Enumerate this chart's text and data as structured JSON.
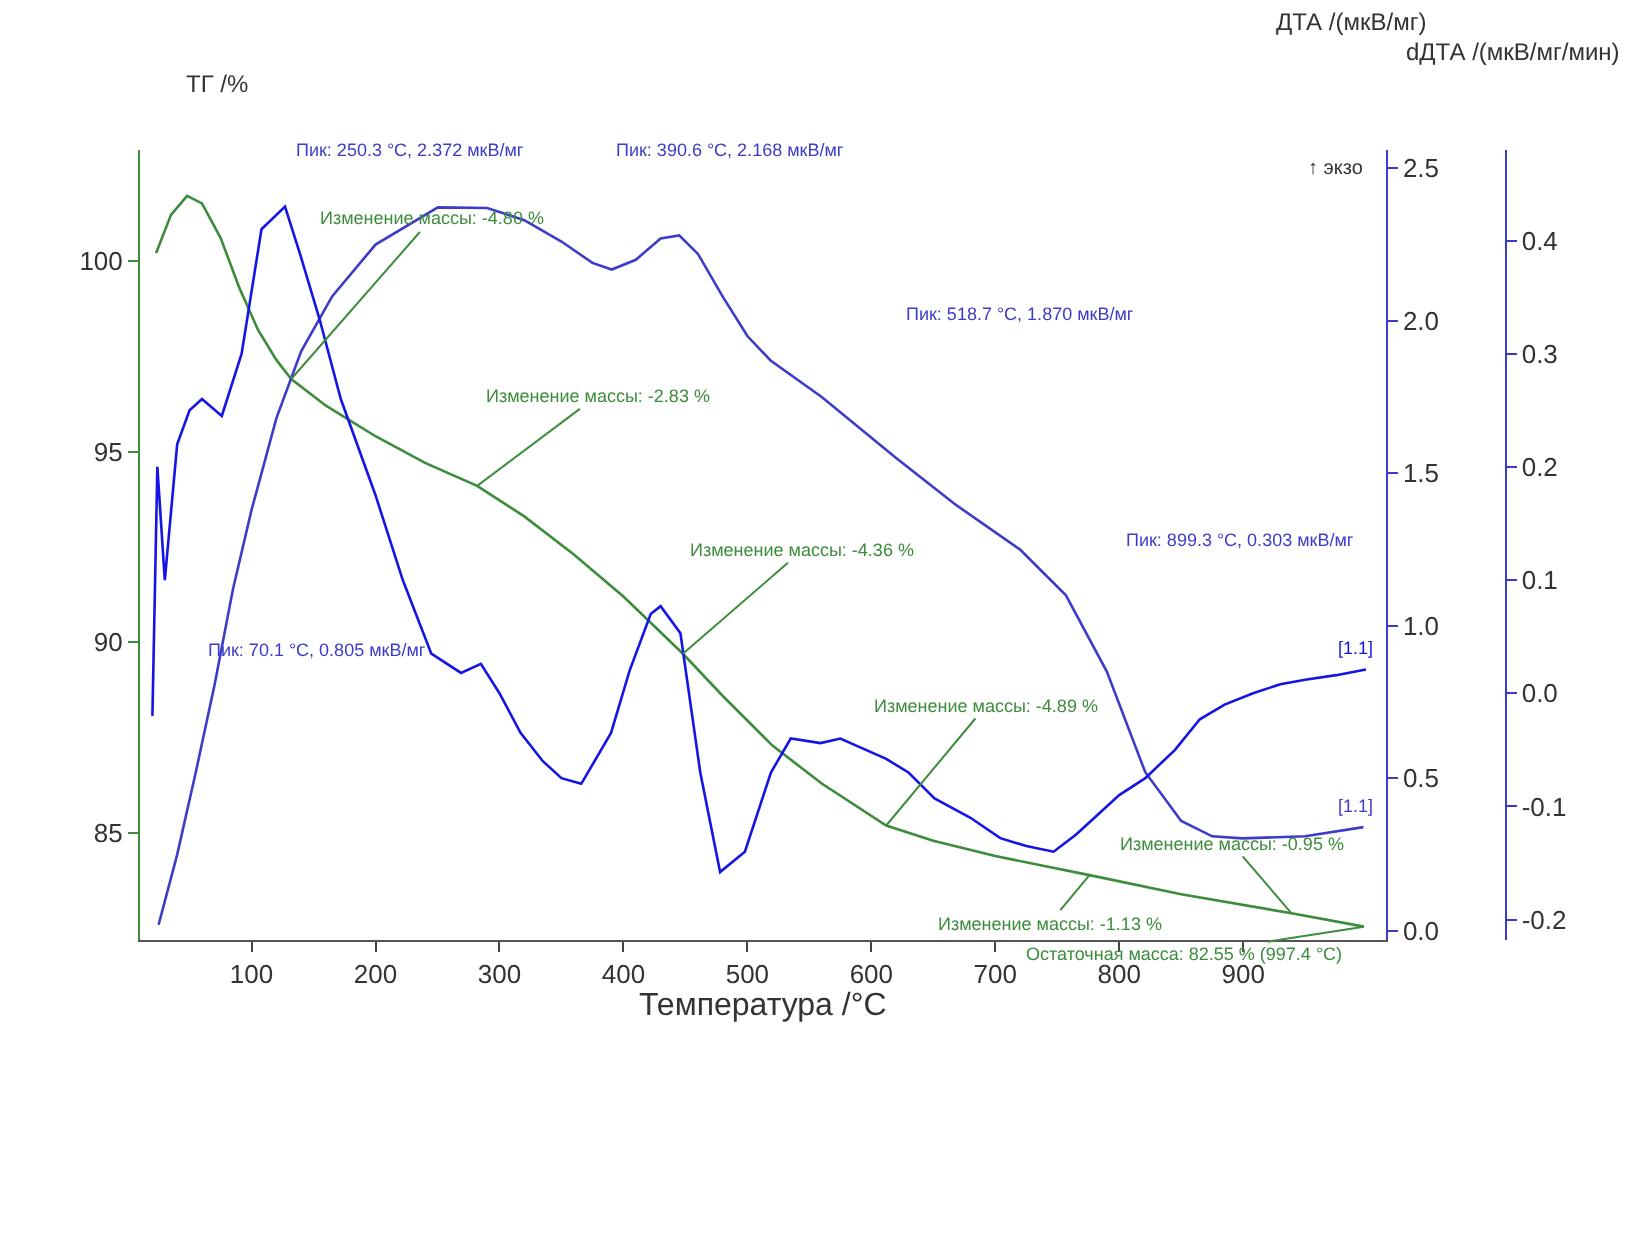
{
  "chart_data": {
    "type": "line",
    "xlabel": "Температура /°C",
    "ylabel": "ТГ /%",
    "y2label": "ДТА /(мкВ/мг)",
    "y3label": "dДТА /(мкВ/мг/мин)",
    "xlim": [
      10,
      1015
    ],
    "xticks": [
      100,
      200,
      300,
      400,
      500,
      600,
      700,
      800,
      900
    ],
    "ylim": [
      82.2,
      102.9
    ],
    "yticks": [
      85,
      90,
      95,
      100
    ],
    "y2lim": [
      -0.03,
      2.56
    ],
    "y2ticks": [
      {
        "value": 0,
        "label": "0.0"
      },
      {
        "value": 0.5,
        "label": "0.5"
      },
      {
        "value": 1,
        "label": "1.0"
      },
      {
        "value": 1.5,
        "label": "1.5"
      },
      {
        "value": 2,
        "label": "2.0"
      },
      {
        "value": 2.5,
        "label": "2.5"
      }
    ],
    "y3lim": [
      -0.218,
      0.48
    ],
    "y3ticks": [
      {
        "value": -0.2,
        "label": "-0.2"
      },
      {
        "value": -0.1,
        "label": "-0.1"
      },
      {
        "value": 0,
        "label": "0.0"
      },
      {
        "value": 0.1,
        "label": "0.1"
      },
      {
        "value": 0.2,
        "label": "0.2"
      },
      {
        "value": 0.3,
        "label": "0.3"
      },
      {
        "value": 0.4,
        "label": "0.4"
      }
    ],
    "marker": "none",
    "line_style": "solid",
    "annotations": [
      "↑ экзо",
      {
        "text": "Изменение массы: -4.80 %",
        "x": 132,
        "y": 96.9
      },
      {
        "text": "Изменение массы: -2.83 %",
        "x": 282,
        "y": 94.1
      },
      {
        "text": "Изменение массы: -4.36 %",
        "x": 448,
        "y": 89.7
      },
      {
        "text": "Изменение массы: -4.89 %",
        "x": 612,
        "y": 85.2
      },
      {
        "text": "Изменение массы: -1.13 %",
        "x": 776,
        "y": 83.9
      },
      {
        "text": "Изменение массы: -0.95 %",
        "x": 939,
        "y": 82.9
      },
      {
        "text": "Остаточная масса: 82.55 % (997.4 °C)",
        "x": 997.4,
        "y": 82.55
      },
      "Пик: 70.1 °C, 0.805 мкВ/мг",
      "Пик: 250.3 °C, 2.372 мкВ/мг",
      "Пик: 390.6 °C, 2.168 мкВ/мг",
      "Пик: 518.7 °C, 1.870 мкВ/мг",
      "Пик: 899.3 °C, 0.303 мкВ/мг",
      "[1.1]",
      "[1.1]"
    ],
    "series": [
      {
        "axis": "y",
        "color": "#3c8c3c",
        "x": [
          23,
          35,
          48,
          60,
          75,
          90,
          105,
          120,
          132,
          160,
          200,
          240,
          282,
          320,
          360,
          400,
          448,
          480,
          520,
          560,
          612,
          650,
          700,
          776,
          850,
          939,
          997.4
        ],
        "values": [
          100.2,
          101.2,
          101.7,
          101.5,
          100.6,
          99.3,
          98.2,
          97.4,
          96.9,
          96.2,
          95.4,
          94.7,
          94.1,
          93.3,
          92.3,
          91.2,
          89.7,
          88.6,
          87.3,
          86.3,
          85.2,
          84.8,
          84.4,
          83.9,
          83.4,
          82.9,
          82.55
        ]
      },
      {
        "axis": "y2",
        "color": "#3c3cc8",
        "x": [
          25,
          40,
          55,
          70.1,
          85,
          100,
          120,
          140,
          165,
          200,
          250.3,
          290,
          320,
          350,
          375,
          390.6,
          410,
          430,
          445,
          460,
          480,
          500,
          518.7,
          560,
          620,
          667,
          720,
          757,
          790,
          821,
          850,
          875,
          899.3,
          950,
          997
        ],
        "values": [
          0.02,
          0.25,
          0.52,
          0.805,
          1.12,
          1.38,
          1.68,
          1.9,
          2.08,
          2.25,
          2.372,
          2.37,
          2.33,
          2.26,
          2.19,
          2.168,
          2.2,
          2.27,
          2.28,
          2.22,
          2.08,
          1.95,
          1.87,
          1.75,
          1.55,
          1.4,
          1.25,
          1.1,
          0.85,
          0.52,
          0.36,
          0.31,
          0.303,
          0.31,
          0.34
        ]
      },
      {
        "axis": "y3",
        "color": "#1414e6",
        "x": [
          20,
          24,
          30,
          40,
          50,
          60,
          76,
          92,
          108,
          127,
          140,
          155,
          172,
          200,
          222,
          245,
          269,
          285,
          300,
          317,
          335,
          350,
          366,
          390,
          405,
          422,
          430,
          446,
          462,
          478,
          498,
          519,
          535,
          559,
          575,
          612,
          630,
          651,
          680,
          704,
          725,
          747,
          765,
          780,
          800,
          821,
          845,
          865,
          885,
          908,
          930,
          950,
          975,
          999
        ],
        "values": [
          -0.02,
          0.2,
          0.1,
          0.22,
          0.25,
          0.26,
          0.245,
          0.3,
          0.41,
          0.43,
          0.385,
          0.33,
          0.26,
          0.175,
          0.1,
          0.035,
          0.018,
          0.026,
          0.0,
          -0.035,
          -0.06,
          -0.075,
          -0.08,
          -0.035,
          0.02,
          0.07,
          0.077,
          0.053,
          -0.07,
          -0.158,
          -0.14,
          -0.07,
          -0.04,
          -0.044,
          -0.04,
          -0.058,
          -0.07,
          -0.093,
          -0.11,
          -0.128,
          -0.135,
          -0.14,
          -0.125,
          -0.11,
          -0.09,
          -0.075,
          -0.05,
          -0.023,
          -0.01,
          0.0,
          0.008,
          0.012,
          0.016,
          0.021
        ]
      }
    ]
  }
}
